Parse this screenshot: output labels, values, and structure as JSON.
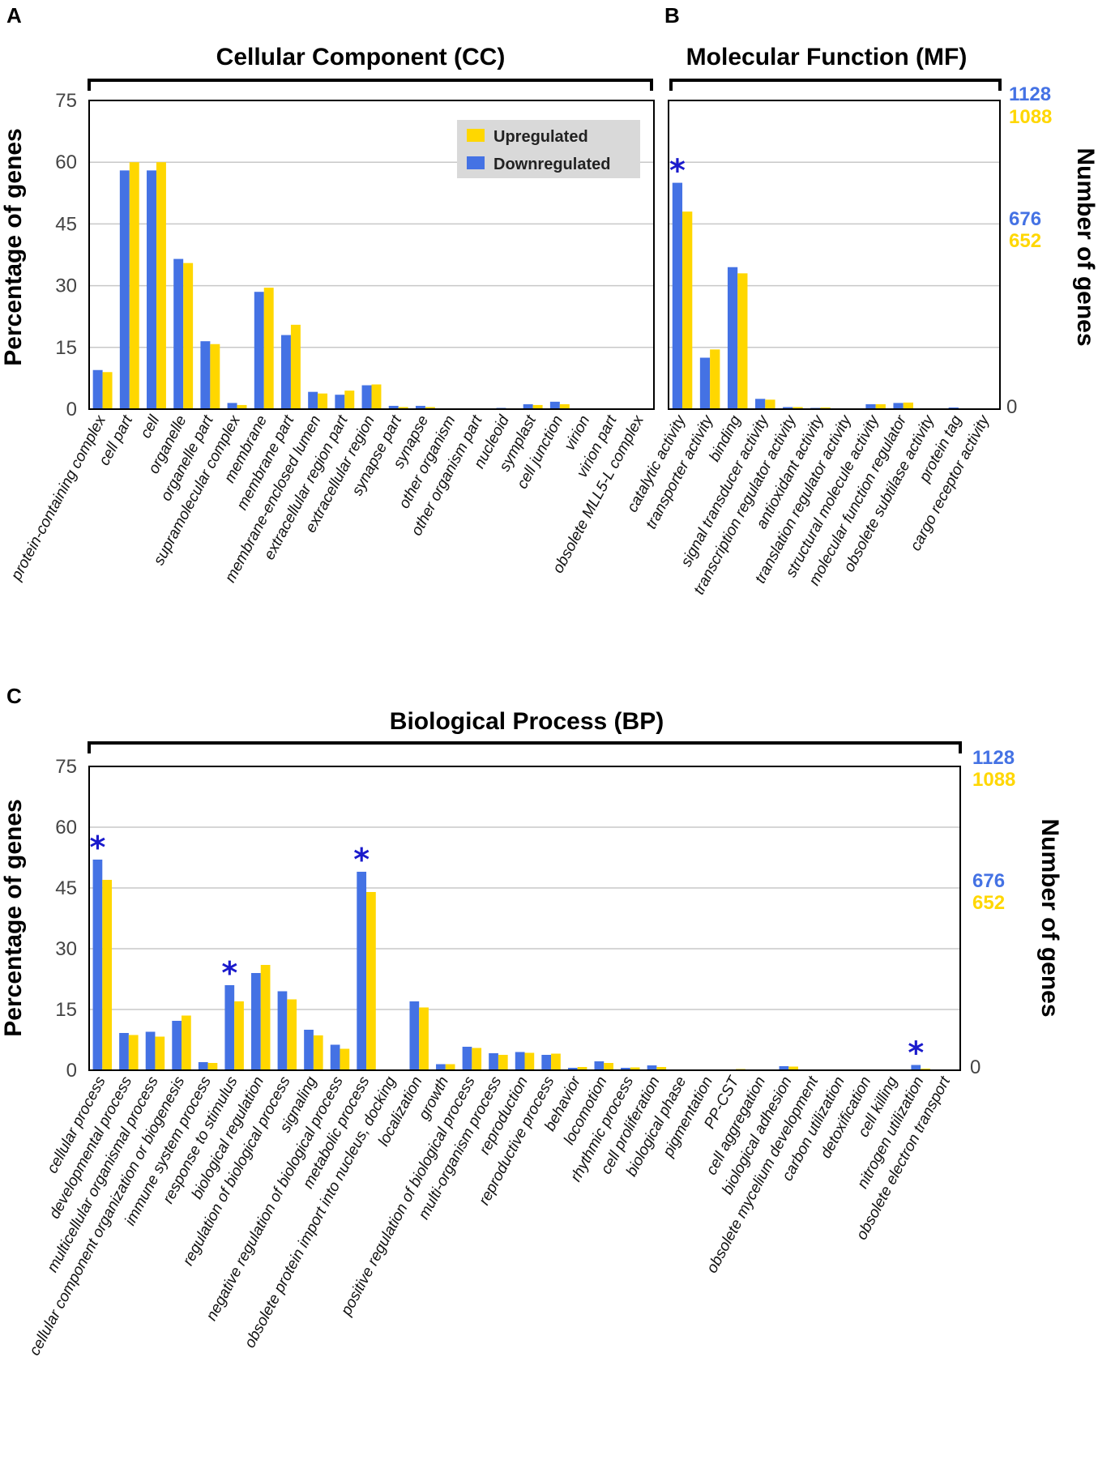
{
  "colors": {
    "downregulated": "#4472e4",
    "upregulated": "#ffd700",
    "star": "#1a1acc",
    "grid": "#c8c8c8",
    "legend_bg": "#d9d9d9"
  },
  "legend": {
    "up": "Upregulated",
    "down": "Downregulated"
  },
  "chart_data": [
    {
      "id": "A",
      "panel_letter": "A",
      "type": "bar",
      "title": "Cellular Component (CC)",
      "ylabel": "Percentage of genes",
      "ylim": [
        0,
        75
      ],
      "yticks": [
        "0",
        "15",
        "30",
        "45",
        "60",
        "75"
      ],
      "categories": [
        "protein-containing complex",
        "cell part",
        "cell",
        "organelle",
        "organelle part",
        "supramolecular complex",
        "membrane",
        "membrane part",
        "membrane-enclosed lumen",
        "extracellular region part",
        "extracellular region",
        "synapse part",
        "synapse",
        "other organism",
        "other organism part",
        "nucleoid",
        "symplast",
        "cell junction",
        "virion",
        "virion part",
        "obsolete MLL5-L complex"
      ],
      "series": [
        {
          "name": "Downregulated",
          "values": [
            9.5,
            58,
            58,
            36.5,
            16.5,
            1.5,
            28.5,
            18,
            4.2,
            3.5,
            5.8,
            0.8,
            0.8,
            0.1,
            0.1,
            0.3,
            1.2,
            1.8,
            0.1,
            0.1,
            0.1
          ]
        },
        {
          "name": "Upregulated",
          "values": [
            9.0,
            60,
            60,
            35.5,
            15.8,
            1.0,
            29.5,
            20.5,
            3.8,
            4.5,
            6.0,
            0.5,
            0.5,
            0.1,
            0.1,
            0.2,
            1.0,
            1.2,
            0.1,
            0.1,
            0.1
          ]
        }
      ],
      "stars": []
    },
    {
      "id": "B",
      "panel_letter": "B",
      "type": "bar",
      "title": "Molecular Function (MF)",
      "y2label": "Number of genes",
      "ylim": [
        0,
        75
      ],
      "y2_zero": "0",
      "y2_top": {
        "blue": "1128",
        "yellow": "1088"
      },
      "y2_mid": {
        "blue": "676",
        "yellow": "652"
      },
      "categories": [
        "catalytic activity",
        "transporter activity",
        "binding",
        "signal transducer activity",
        "transcription regulator activity",
        "antioxidant activity",
        "translation regulator activity",
        "structural molecule activity",
        "molecular function regulator",
        "obsolete subtilase activity",
        "protein tag",
        "cargo receptor activity"
      ],
      "series": [
        {
          "name": "Downregulated",
          "values": [
            55,
            12.5,
            34.5,
            2.5,
            0.5,
            0.3,
            0.2,
            1.2,
            1.5,
            0.1,
            0.4,
            0.1
          ]
        },
        {
          "name": "Upregulated",
          "values": [
            48,
            14.5,
            33,
            2.3,
            0.5,
            0.4,
            0.2,
            1.2,
            1.6,
            0.1,
            0.1,
            0.1
          ]
        }
      ],
      "stars": [
        {
          "index": 0,
          "label": "*"
        }
      ]
    },
    {
      "id": "C",
      "panel_letter": "C",
      "type": "bar",
      "title": "Biological Process (BP)",
      "ylabel": "Percentage of genes",
      "y2label": "Number of genes",
      "ylim": [
        0,
        75
      ],
      "yticks": [
        "0",
        "15",
        "30",
        "45",
        "60",
        "75"
      ],
      "y2_zero": "0",
      "y2_top": {
        "blue": "1128",
        "yellow": "1088"
      },
      "y2_mid": {
        "blue": "676",
        "yellow": "652"
      },
      "categories": [
        "cellular process",
        "developmental process",
        "multicellular organismal process",
        "cellular component organization or biogenesis",
        "immune system process",
        "response to stimulus",
        "biological regulation",
        "regulation of biological process",
        "signaling",
        "negative regulation of biological process",
        "metabolic process",
        "obsolete protein import into nucleus, docking",
        "localization",
        "growth",
        "positive regulation of biological process",
        "multi-organism process",
        "reproduction",
        "reproductive process",
        "behavior",
        "locomotion",
        "rhythmic process",
        "cell proliferation",
        "biological phase",
        "pigmentation",
        "PP-CST",
        "cell aggregation",
        "biological adhesion",
        "obsolete mycelium development",
        "carbon utilization",
        "detoxification",
        "cell killing",
        "nitrogen utilization",
        "obsolete electron transport"
      ],
      "series": [
        {
          "name": "Downregulated",
          "values": [
            52,
            9.2,
            9.5,
            12.2,
            2.0,
            21,
            24,
            19.5,
            10,
            6.3,
            49,
            0.1,
            17,
            1.5,
            5.8,
            4.2,
            4.5,
            3.8,
            0.6,
            2.2,
            0.6,
            1.2,
            0.2,
            0.2,
            0.2,
            0.2,
            1.0,
            0.1,
            0.1,
            0.1,
            0.1,
            1.3,
            0.1
          ]
        },
        {
          "name": "Upregulated",
          "values": [
            47,
            8.7,
            8.3,
            13.5,
            1.8,
            17,
            26,
            17.5,
            8.6,
            5.3,
            44,
            0.1,
            15.5,
            1.5,
            5.5,
            3.8,
            4.3,
            4.1,
            0.8,
            1.8,
            0.7,
            0.8,
            0.2,
            0.2,
            0.3,
            0.2,
            0.9,
            0.1,
            0.1,
            0.1,
            0.1,
            0.4,
            0.1
          ]
        }
      ],
      "stars": [
        {
          "index": 0,
          "label": "*"
        },
        {
          "index": 5,
          "label": "*"
        },
        {
          "index": 10,
          "label": "*"
        },
        {
          "index": 31,
          "label": "*"
        }
      ]
    }
  ]
}
